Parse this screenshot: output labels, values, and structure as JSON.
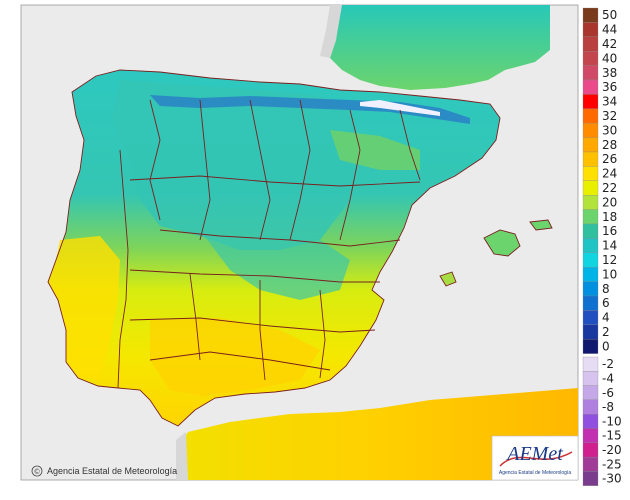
{
  "credit": {
    "text": "Agencia Estatal de Meteorología",
    "symbol": "©"
  },
  "logo": {
    "text": "AEMet",
    "subtitle": "Agencia Estatal de Meteorología"
  },
  "legend": {
    "entries": [
      {
        "label": "50",
        "color": "#7a3a1c"
      },
      {
        "label": "44",
        "color": "#a8352e"
      },
      {
        "label": "42",
        "color": "#b8403f"
      },
      {
        "label": "40",
        "color": "#c3464f"
      },
      {
        "label": "38",
        "color": "#d04a68"
      },
      {
        "label": "36",
        "color": "#ea4a8a"
      },
      {
        "label": "34",
        "color": "#ff0000"
      },
      {
        "label": "32",
        "color": "#ff6a00"
      },
      {
        "label": "30",
        "color": "#ff8c00"
      },
      {
        "label": "28",
        "color": "#ffa800"
      },
      {
        "label": "26",
        "color": "#ffc000"
      },
      {
        "label": "24",
        "color": "#ffe000"
      },
      {
        "label": "22",
        "color": "#e8f000"
      },
      {
        "label": "20",
        "color": "#b4e23c"
      },
      {
        "label": "18",
        "color": "#6cd46c"
      },
      {
        "label": "16",
        "color": "#30c0a0"
      },
      {
        "label": "14",
        "color": "#20c4c4"
      },
      {
        "label": "12",
        "color": "#10d4e0"
      },
      {
        "label": "10",
        "color": "#00b4e8"
      },
      {
        "label": "8",
        "color": "#0090e0"
      },
      {
        "label": "6",
        "color": "#1070d0"
      },
      {
        "label": "4",
        "color": "#2050c0"
      },
      {
        "label": "2",
        "color": "#1838a0"
      },
      {
        "label": "0",
        "color": "#101870"
      },
      {
        "label": "-2",
        "color": "#e6dcf4"
      },
      {
        "label": "-4",
        "color": "#d6c4ee"
      },
      {
        "label": "-6",
        "color": "#c4a8e8"
      },
      {
        "label": "-8",
        "color": "#b080e0"
      },
      {
        "label": "-10",
        "color": "#9050e0"
      },
      {
        "label": "-15",
        "color": "#c030b0"
      },
      {
        "label": "-20",
        "color": "#d02090"
      },
      {
        "label": "-25",
        "color": "#a03c98"
      },
      {
        "label": "-30",
        "color": "#7a3c8c"
      }
    ]
  },
  "colors": {
    "sea": "#ebebeb",
    "foreign_land": "#d7d7d7",
    "borders": "#7a1f1f"
  }
}
